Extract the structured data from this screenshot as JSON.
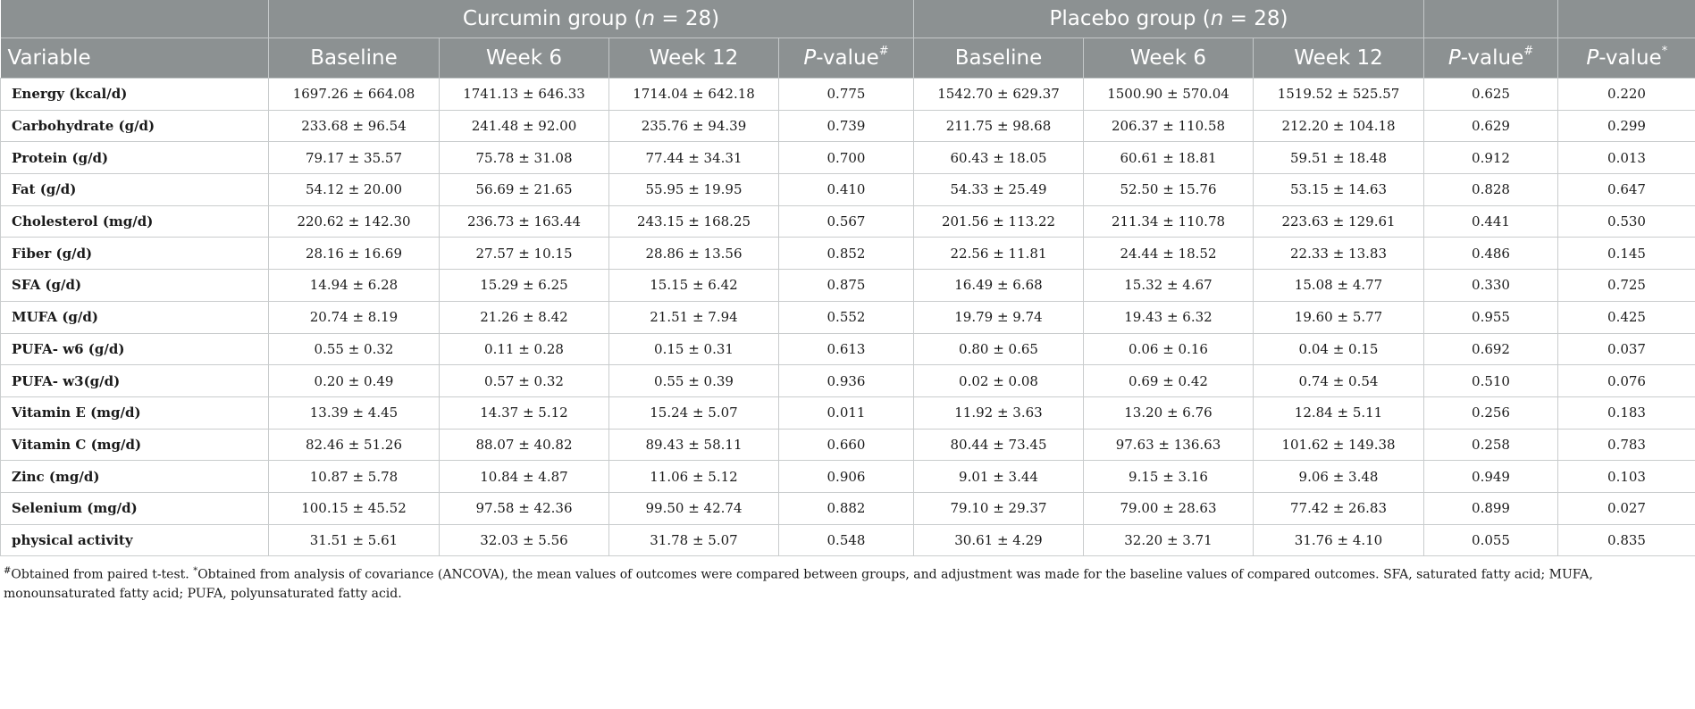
{
  "header": {
    "variable_label": "Variable",
    "curcumin_group": "Curcumin group",
    "curcumin_n_prefix": "(",
    "curcumin_n_var": "n",
    "curcumin_n_suffix": " = 28)",
    "placebo_group": "Placebo group",
    "placebo_n_prefix": "(",
    "placebo_n_var": "n",
    "placebo_n_suffix": " = 28)",
    "baseline": "Baseline",
    "week6": "Week 6",
    "week12": "Week 12",
    "p_italic": "P",
    "p_suffix": "-value",
    "hash_mark": "#",
    "star_mark": "*"
  },
  "rows": [
    {
      "variable": "Energy (kcal/d)",
      "c_base": "1697.26 ± 664.08",
      "c_w6": "1741.13 ± 646.33",
      "c_w12": "1714.04 ± 642.18",
      "c_p": "0.775",
      "p_base": "1542.70 ± 629.37",
      "p_w6": "1500.90 ± 570.04",
      "p_w12": "1519.52 ± 525.57",
      "p_p": "0.625",
      "p_between": "0.220"
    },
    {
      "variable": "Carbohydrate (g/d)",
      "c_base": "233.68 ± 96.54",
      "c_w6": "241.48 ± 92.00",
      "c_w12": "235.76 ± 94.39",
      "c_p": "0.739",
      "p_base": "211.75 ± 98.68",
      "p_w6": "206.37 ± 110.58",
      "p_w12": "212.20 ± 104.18",
      "p_p": "0.629",
      "p_between": "0.299"
    },
    {
      "variable": "Protein (g/d)",
      "c_base": "79.17 ± 35.57",
      "c_w6": "75.78 ± 31.08",
      "c_w12": "77.44 ± 34.31",
      "c_p": "0.700",
      "p_base": "60.43 ± 18.05",
      "p_w6": "60.61 ± 18.81",
      "p_w12": "59.51 ± 18.48",
      "p_p": "0.912",
      "p_between": "0.013"
    },
    {
      "variable": "Fat (g/d)",
      "c_base": "54.12 ± 20.00",
      "c_w6": "56.69 ± 21.65",
      "c_w12": "55.95 ± 19.95",
      "c_p": "0.410",
      "p_base": "54.33 ± 25.49",
      "p_w6": "52.50 ± 15.76",
      "p_w12": "53.15 ± 14.63",
      "p_p": "0.828",
      "p_between": "0.647"
    },
    {
      "variable": "Cholesterol (mg/d)",
      "c_base": "220.62 ± 142.30",
      "c_w6": "236.73 ± 163.44",
      "c_w12": "243.15 ± 168.25",
      "c_p": "0.567",
      "p_base": "201.56 ± 113.22",
      "p_w6": "211.34 ± 110.78",
      "p_w12": "223.63 ± 129.61",
      "p_p": "0.441",
      "p_between": "0.530"
    },
    {
      "variable": "Fiber (g/d)",
      "c_base": "28.16 ± 16.69",
      "c_w6": "27.57 ± 10.15",
      "c_w12": "28.86 ± 13.56",
      "c_p": "0.852",
      "p_base": "22.56 ± 11.81",
      "p_w6": "24.44 ± 18.52",
      "p_w12": "22.33 ± 13.83",
      "p_p": "0.486",
      "p_between": "0.145"
    },
    {
      "variable": "SFA (g/d)",
      "c_base": "14.94 ± 6.28",
      "c_w6": "15.29 ± 6.25",
      "c_w12": "15.15 ± 6.42",
      "c_p": "0.875",
      "p_base": "16.49 ± 6.68",
      "p_w6": "15.32 ± 4.67",
      "p_w12": "15.08 ± 4.77",
      "p_p": "0.330",
      "p_between": "0.725"
    },
    {
      "variable": "MUFA (g/d)",
      "c_base": "20.74 ± 8.19",
      "c_w6": "21.26 ± 8.42",
      "c_w12": "21.51 ± 7.94",
      "c_p": "0.552",
      "p_base": "19.79 ± 9.74",
      "p_w6": "19.43 ± 6.32",
      "p_w12": "19.60 ± 5.77",
      "p_p": "0.955",
      "p_between": "0.425"
    },
    {
      "variable": "PUFA- w6 (g/d)",
      "c_base": "0.55 ± 0.32",
      "c_w6": "0.11 ± 0.28",
      "c_w12": "0.15 ± 0.31",
      "c_p": "0.613",
      "p_base": "0.80 ± 0.65",
      "p_w6": "0.06 ± 0.16",
      "p_w12": "0.04 ± 0.15",
      "p_p": "0.692",
      "p_between": "0.037"
    },
    {
      "variable": "PUFA- w3(g/d)",
      "c_base": "0.20 ± 0.49",
      "c_w6": "0.57 ± 0.32",
      "c_w12": "0.55 ± 0.39",
      "c_p": "0.936",
      "p_base": "0.02 ± 0.08",
      "p_w6": "0.69 ± 0.42",
      "p_w12": "0.74 ± 0.54",
      "p_p": "0.510",
      "p_between": "0.076"
    },
    {
      "variable": "Vitamin E (mg/d)",
      "c_base": "13.39 ± 4.45",
      "c_w6": "14.37 ± 5.12",
      "c_w12": "15.24 ± 5.07",
      "c_p": "0.011",
      "p_base": "11.92 ± 3.63",
      "p_w6": "13.20 ± 6.76",
      "p_w12": "12.84 ± 5.11",
      "p_p": "0.256",
      "p_between": "0.183"
    },
    {
      "variable": "Vitamin C (mg/d)",
      "c_base": "82.46 ± 51.26",
      "c_w6": "88.07 ± 40.82",
      "c_w12": "89.43 ± 58.11",
      "c_p": "0.660",
      "p_base": "80.44 ± 73.45",
      "p_w6": "97.63 ± 136.63",
      "p_w12": "101.62 ± 149.38",
      "p_p": "0.258",
      "p_between": "0.783"
    },
    {
      "variable": "Zinc (mg/d)",
      "c_base": "10.87 ± 5.78",
      "c_w6": "10.84 ± 4.87",
      "c_w12": "11.06 ± 5.12",
      "c_p": "0.906",
      "p_base": "9.01 ± 3.44",
      "p_w6": "9.15 ± 3.16",
      "p_w12": "9.06 ± 3.48",
      "p_p": "0.949",
      "p_between": "0.103"
    },
    {
      "variable": "Selenium (mg/d)",
      "c_base": "100.15 ± 45.52",
      "c_w6": "97.58 ± 42.36",
      "c_w12": "99.50 ± 42.74",
      "c_p": "0.882",
      "p_base": "79.10 ± 29.37",
      "p_w6": "79.00 ± 28.63",
      "p_w12": "77.42 ± 26.83",
      "p_p": "0.899",
      "p_between": "0.027"
    },
    {
      "variable": "physical activity",
      "c_base": "31.51 ± 5.61",
      "c_w6": "32.03 ± 5.56",
      "c_w12": "31.78 ± 5.07",
      "c_p": "0.548",
      "p_base": "30.61 ± 4.29",
      "p_w6": "32.20 ± 3.71",
      "p_w12": "31.76 ± 4.10",
      "p_p": "0.055",
      "p_between": "0.835"
    }
  ],
  "footnote": {
    "hash_mark": "#",
    "hash_text": "Obtained from paired t-test.",
    "star_mark": "*",
    "star_text": "Obtained from analysis of covariance (ANCOVA), the mean values of outcomes were compared between groups, and adjustment was made for the baseline values of compared outcomes. SFA, saturated fatty acid; MUFA, monounsaturated fatty acid; PUFA, polyunsaturated fatty acid."
  }
}
